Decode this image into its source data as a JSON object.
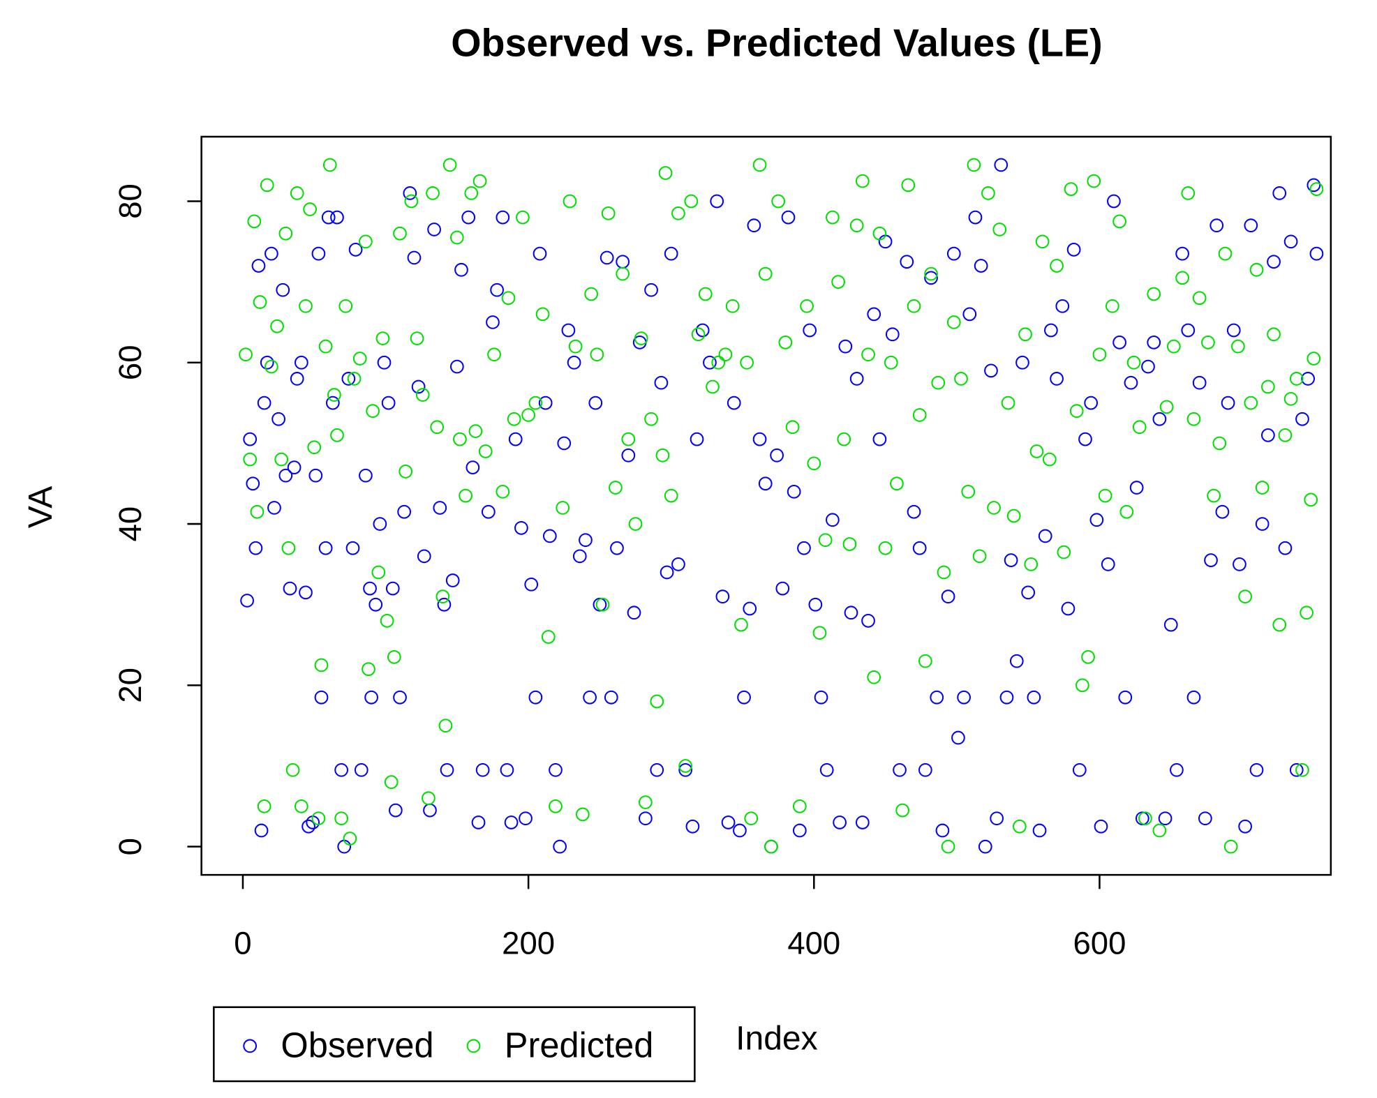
{
  "chart_data": {
    "type": "scatter",
    "title": "Observed vs. Predicted Values (LE)",
    "x_label": "Index",
    "y_label": "VA",
    "xlim": [
      -29,
      762
    ],
    "ylim": [
      -3.5,
      88
    ],
    "xticks": [
      0,
      200,
      400,
      600
    ],
    "yticks": [
      0,
      20,
      40,
      60,
      80
    ],
    "grid": false,
    "legend": "bottom-left",
    "series": [
      {
        "name": "Observed",
        "color": "#0000ff",
        "x": [
          3,
          5,
          7,
          9,
          11,
          13,
          15,
          17,
          20,
          22,
          25,
          28,
          30,
          33,
          36,
          38,
          41,
          44,
          46,
          49,
          51,
          53,
          55,
          58,
          60,
          63,
          66,
          69,
          71,
          74,
          77,
          79,
          83,
          86,
          89,
          90,
          93,
          96,
          99,
          102,
          105,
          107,
          110,
          113,
          117,
          120,
          123,
          127,
          131,
          134,
          138,
          141,
          143,
          147,
          150,
          153,
          158,
          161,
          165,
          168,
          172,
          175,
          178,
          182,
          185,
          188,
          191,
          195,
          198,
          202,
          205,
          208,
          212,
          215,
          219,
          222,
          225,
          228,
          232,
          236,
          240,
          243,
          247,
          250,
          255,
          258,
          262,
          266,
          270,
          274,
          278,
          282,
          286,
          290,
          293,
          297,
          300,
          305,
          310,
          315,
          318,
          322,
          327,
          332,
          336,
          340,
          344,
          348,
          351,
          355,
          358,
          362,
          366,
          370,
          374,
          378,
          382,
          386,
          390,
          393,
          397,
          401,
          405,
          409,
          413,
          418,
          422,
          426,
          430,
          434,
          438,
          442,
          446,
          450,
          455,
          460,
          465,
          470,
          474,
          478,
          482,
          486,
          490,
          494,
          498,
          501,
          505,
          509,
          513,
          517,
          520,
          524,
          528,
          531,
          535,
          538,
          542,
          546,
          550,
          554,
          558,
          562,
          566,
          570,
          574,
          578,
          582,
          586,
          590,
          594,
          598,
          601,
          606,
          610,
          614,
          618,
          622,
          626,
          630,
          634,
          638,
          642,
          646,
          650,
          654,
          658,
          662,
          666,
          670,
          674,
          678,
          682,
          686,
          690,
          694,
          698,
          702,
          706,
          710,
          714,
          718,
          722,
          726,
          730,
          734,
          738,
          742,
          746,
          750,
          752
        ],
        "values": [
          30.5,
          50.5,
          45,
          37,
          72,
          2,
          55,
          60,
          73.5,
          42,
          53,
          69,
          46,
          32,
          47,
          58,
          60,
          31.5,
          2.5,
          3,
          46,
          73.5,
          18.5,
          37,
          78,
          55,
          78,
          9.5,
          0,
          58,
          37,
          74,
          9.5,
          46,
          32,
          18.5,
          30,
          40,
          60,
          55,
          32,
          4.5,
          18.5,
          41.5,
          81,
          73,
          57,
          36,
          4.5,
          76.5,
          42,
          30,
          9.5,
          33,
          59.5,
          71.5,
          78,
          47,
          3,
          9.5,
          41.5,
          65,
          69,
          78,
          9.5,
          3,
          50.5,
          39.5,
          3.5,
          32.5,
          18.5,
          73.5,
          55,
          38.5,
          9.5,
          0,
          50,
          64,
          60,
          36,
          38,
          18.5,
          55,
          30,
          73,
          18.5,
          37,
          72.5,
          48.5,
          29,
          62.5,
          3.5,
          69,
          9.5,
          57.5,
          34,
          73.5,
          35,
          9.5,
          2.5,
          50.5,
          64,
          60,
          80,
          31,
          3,
          55,
          2,
          18.5,
          29.5,
          77,
          50.5,
          45,
          0,
          48.5,
          32,
          78,
          44,
          2,
          37,
          64,
          30,
          18.5,
          9.5,
          40.5,
          3,
          62,
          29,
          58,
          3,
          28,
          66,
          50.5,
          75,
          63.5,
          9.5,
          72.5,
          41.5,
          37,
          9.5,
          70.5,
          18.5,
          2,
          31,
          73.5,
          13.5,
          18.5,
          66,
          78,
          72,
          0,
          59,
          3.5,
          84.5,
          18.5,
          35.5,
          23,
          60,
          31.5,
          18.5,
          2,
          38.5,
          64,
          58,
          67,
          29.5,
          74,
          9.5,
          50.5,
          55,
          40.5,
          2.5,
          35,
          80,
          62.5,
          18.5,
          57.5,
          44.5,
          3.5,
          59.5,
          62.5,
          53,
          3.5,
          27.5,
          9.5,
          73.5,
          64,
          18.5,
          57.5,
          3.5,
          35.5,
          77,
          41.5,
          55,
          64,
          35,
          2.5,
          77,
          9.5,
          40,
          51,
          72.5,
          81,
          37,
          75,
          9.5,
          53,
          58,
          82,
          73.5
        ]
      },
      {
        "name": "Predicted",
        "color": "#00e000",
        "x": [
          2,
          5,
          8,
          10,
          12,
          15,
          17,
          20,
          24,
          27,
          30,
          32,
          35,
          38,
          41,
          44,
          47,
          50,
          53,
          55,
          58,
          61,
          64,
          66,
          69,
          72,
          75,
          78,
          82,
          86,
          88,
          91,
          95,
          98,
          101,
          104,
          106,
          110,
          114,
          118,
          122,
          126,
          130,
          133,
          136,
          140,
          142,
          145,
          150,
          152,
          156,
          160,
          163,
          166,
          170,
          176,
          182,
          186,
          190,
          196,
          200,
          205,
          210,
          214,
          219,
          224,
          229,
          233,
          238,
          244,
          248,
          252,
          256,
          261,
          266,
          270,
          275,
          279,
          282,
          286,
          290,
          294,
          296,
          300,
          305,
          310,
          314,
          319,
          324,
          329,
          333,
          338,
          343,
          349,
          353,
          356,
          362,
          366,
          370,
          375,
          380,
          385,
          390,
          395,
          400,
          404,
          408,
          413,
          417,
          421,
          425,
          430,
          434,
          438,
          442,
          446,
          450,
          454,
          458,
          462,
          466,
          470,
          474,
          478,
          482,
          487,
          491,
          494,
          498,
          503,
          508,
          512,
          516,
          522,
          526,
          530,
          536,
          540,
          544,
          548,
          552,
          556,
          560,
          565,
          570,
          575,
          580,
          584,
          588,
          592,
          596,
          600,
          604,
          609,
          614,
          619,
          624,
          628,
          632,
          638,
          642,
          647,
          652,
          658,
          662,
          666,
          670,
          676,
          680,
          684,
          688,
          692,
          697,
          702,
          706,
          710,
          714,
          718,
          722,
          726,
          730,
          734,
          738,
          742,
          745,
          748,
          750,
          752
        ],
        "values": [
          61,
          48,
          77.5,
          41.5,
          67.5,
          5,
          82,
          59.5,
          64.5,
          48,
          76,
          37,
          9.5,
          81,
          5,
          67,
          79,
          49.5,
          3.5,
          22.5,
          62,
          84.5,
          56,
          51,
          3.5,
          67,
          1,
          58,
          60.5,
          75,
          22,
          54,
          34,
          63,
          28,
          8,
          23.5,
          76,
          46.5,
          80,
          63,
          56,
          6,
          81,
          52,
          31,
          15,
          84.5,
          75.5,
          50.5,
          43.5,
          81,
          51.5,
          82.5,
          49,
          61,
          44,
          68,
          53,
          78,
          53.5,
          55,
          66,
          26,
          5,
          42,
          80,
          62,
          4,
          68.5,
          61,
          30,
          78.5,
          44.5,
          71,
          50.5,
          40,
          63,
          5.5,
          53,
          18,
          48.5,
          83.5,
          43.5,
          78.5,
          10,
          80,
          63.5,
          68.5,
          57,
          60,
          61,
          67,
          27.5,
          60,
          3.5,
          84.5,
          71,
          0,
          80,
          62.5,
          52,
          5,
          67,
          47.5,
          26.5,
          38,
          78,
          70,
          50.5,
          37.5,
          77,
          82.5,
          61,
          21,
          76,
          37,
          60,
          45,
          4.5,
          82,
          67,
          53.5,
          23,
          71,
          57.5,
          34,
          0,
          65,
          58,
          44,
          84.5,
          36,
          81,
          42,
          76.5,
          55,
          41,
          2.5,
          63.5,
          35,
          49,
          75,
          48,
          72,
          36.5,
          81.5,
          54,
          20,
          23.5,
          82.5,
          61,
          43.5,
          67,
          77.5,
          41.5,
          60,
          52,
          3.5,
          68.5,
          2,
          54.5,
          62,
          70.5,
          81,
          53,
          68,
          62.5,
          43.5,
          50,
          73.5,
          0,
          62,
          31,
          55,
          71.5,
          44.5,
          57,
          63.5,
          27.5,
          51,
          55.5,
          58,
          9.5,
          29,
          43,
          60.5,
          81.5
        ]
      }
    ]
  }
}
